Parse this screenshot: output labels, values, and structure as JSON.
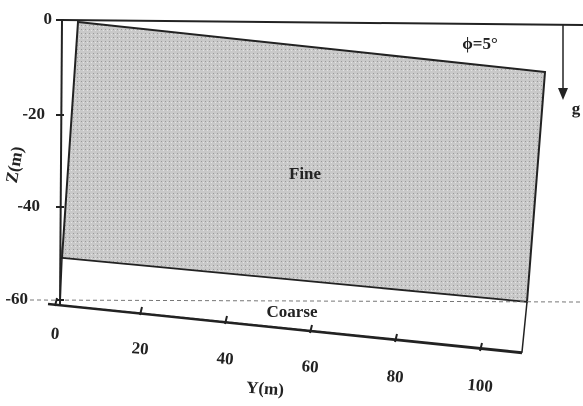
{
  "labels": {
    "fine": "Fine",
    "coarse": "Coarse",
    "angle": "ϕ=5°",
    "gravity": "g"
  },
  "axes": {
    "z": {
      "label": "Z(m)",
      "ticks": [
        "0",
        "-20",
        "-40",
        "-60"
      ]
    },
    "y": {
      "label": "Y(m)",
      "ticks": [
        "0",
        "20",
        "40",
        "60",
        "80",
        "100"
      ]
    }
  }
}
